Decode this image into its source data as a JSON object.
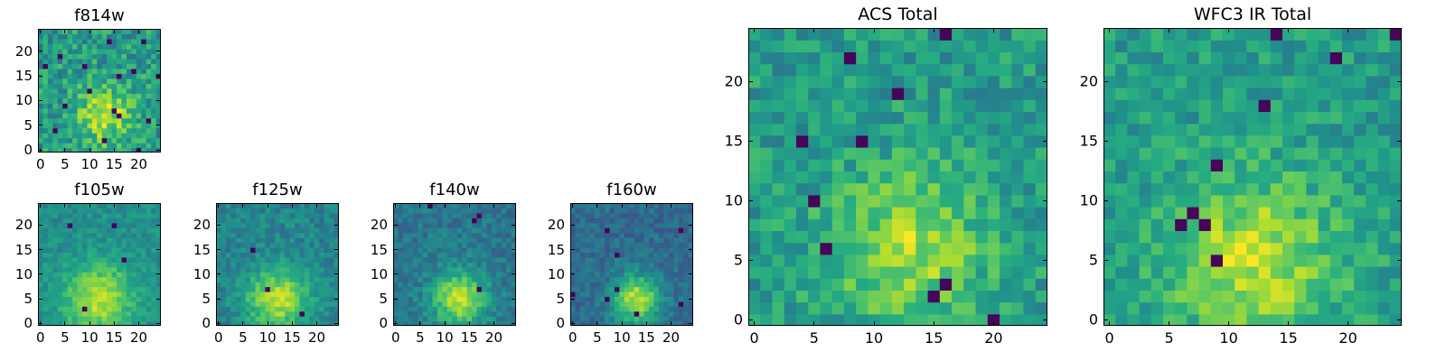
{
  "chart_data": [
    {
      "id": "f814w",
      "type": "heatmap",
      "title": "f814w",
      "grid_size": 25,
      "xlim": [
        -0.5,
        24.5
      ],
      "ylim": [
        -0.5,
        24.5
      ],
      "xticks": [
        0,
        5,
        10,
        15,
        20
      ],
      "yticks": [
        0,
        5,
        10,
        15,
        20
      ],
      "center": [
        13,
        7
      ],
      "sigma": 4.0,
      "peak": 0.35,
      "base": 0.55,
      "noise": 0.35,
      "dark_pixels": 16,
      "seed": 814
    },
    {
      "id": "f105w",
      "type": "heatmap",
      "title": "f105w",
      "grid_size": 25,
      "xlim": [
        -0.5,
        24.5
      ],
      "ylim": [
        -0.5,
        24.5
      ],
      "xticks": [
        0,
        5,
        10,
        15,
        20
      ],
      "yticks": [
        0,
        5,
        10,
        15,
        20
      ],
      "center": [
        12,
        5
      ],
      "sigma": 5.0,
      "peak": 0.4,
      "base": 0.5,
      "noise": 0.18,
      "dark_pixels": 4,
      "seed": 105
    },
    {
      "id": "f125w",
      "type": "heatmap",
      "title": "f125w",
      "grid_size": 25,
      "xlim": [
        -0.5,
        24.5
      ],
      "ylim": [
        -0.5,
        24.5
      ],
      "xticks": [
        0,
        5,
        10,
        15,
        20
      ],
      "yticks": [
        0,
        5,
        10,
        15,
        20
      ],
      "center": [
        12,
        5
      ],
      "sigma": 4.5,
      "peak": 0.45,
      "base": 0.45,
      "noise": 0.2,
      "dark_pixels": 3,
      "seed": 125
    },
    {
      "id": "f140w",
      "type": "heatmap",
      "title": "f140w",
      "grid_size": 25,
      "xlim": [
        -0.5,
        24.5
      ],
      "ylim": [
        -0.5,
        24.5
      ],
      "xticks": [
        0,
        5,
        10,
        15,
        20
      ],
      "yticks": [
        0,
        5,
        10,
        15,
        20
      ],
      "center": [
        13,
        5
      ],
      "sigma": 4.0,
      "peak": 0.5,
      "base": 0.4,
      "noise": 0.2,
      "dark_pixels": 4,
      "seed": 140
    },
    {
      "id": "f160w",
      "type": "heatmap",
      "title": "f160w",
      "grid_size": 25,
      "xlim": [
        -0.5,
        24.5
      ],
      "ylim": [
        -0.5,
        24.5
      ],
      "xticks": [
        0,
        5,
        10,
        15,
        20
      ],
      "yticks": [
        0,
        5,
        10,
        15,
        20
      ],
      "center": [
        13,
        5
      ],
      "sigma": 3.5,
      "peak": 0.55,
      "base": 0.35,
      "noise": 0.18,
      "dark_pixels": 8,
      "seed": 160
    },
    {
      "id": "acs",
      "type": "heatmap",
      "title": "ACS Total",
      "grid_size": 25,
      "xlim": [
        -0.5,
        24.5
      ],
      "ylim": [
        -0.5,
        24.5
      ],
      "xticks": [
        0,
        5,
        10,
        15,
        20
      ],
      "yticks": [
        0,
        5,
        10,
        15,
        20
      ],
      "center": [
        13,
        6
      ],
      "sigma": 4.5,
      "peak": 0.32,
      "base": 0.55,
      "noise": 0.28,
      "dark_pixels": 10,
      "seed": 711
    },
    {
      "id": "wfc3",
      "type": "heatmap",
      "title": "WFC3 IR Total",
      "grid_size": 25,
      "xlim": [
        -0.5,
        24.5
      ],
      "ylim": [
        -0.5,
        24.5
      ],
      "xticks": [
        0,
        5,
        10,
        15,
        20
      ],
      "yticks": [
        0,
        5,
        10,
        15,
        20
      ],
      "center": [
        12,
        5
      ],
      "sigma": 5.0,
      "peak": 0.35,
      "base": 0.55,
      "noise": 0.26,
      "dark_pixels": 9,
      "seed": 330
    }
  ]
}
